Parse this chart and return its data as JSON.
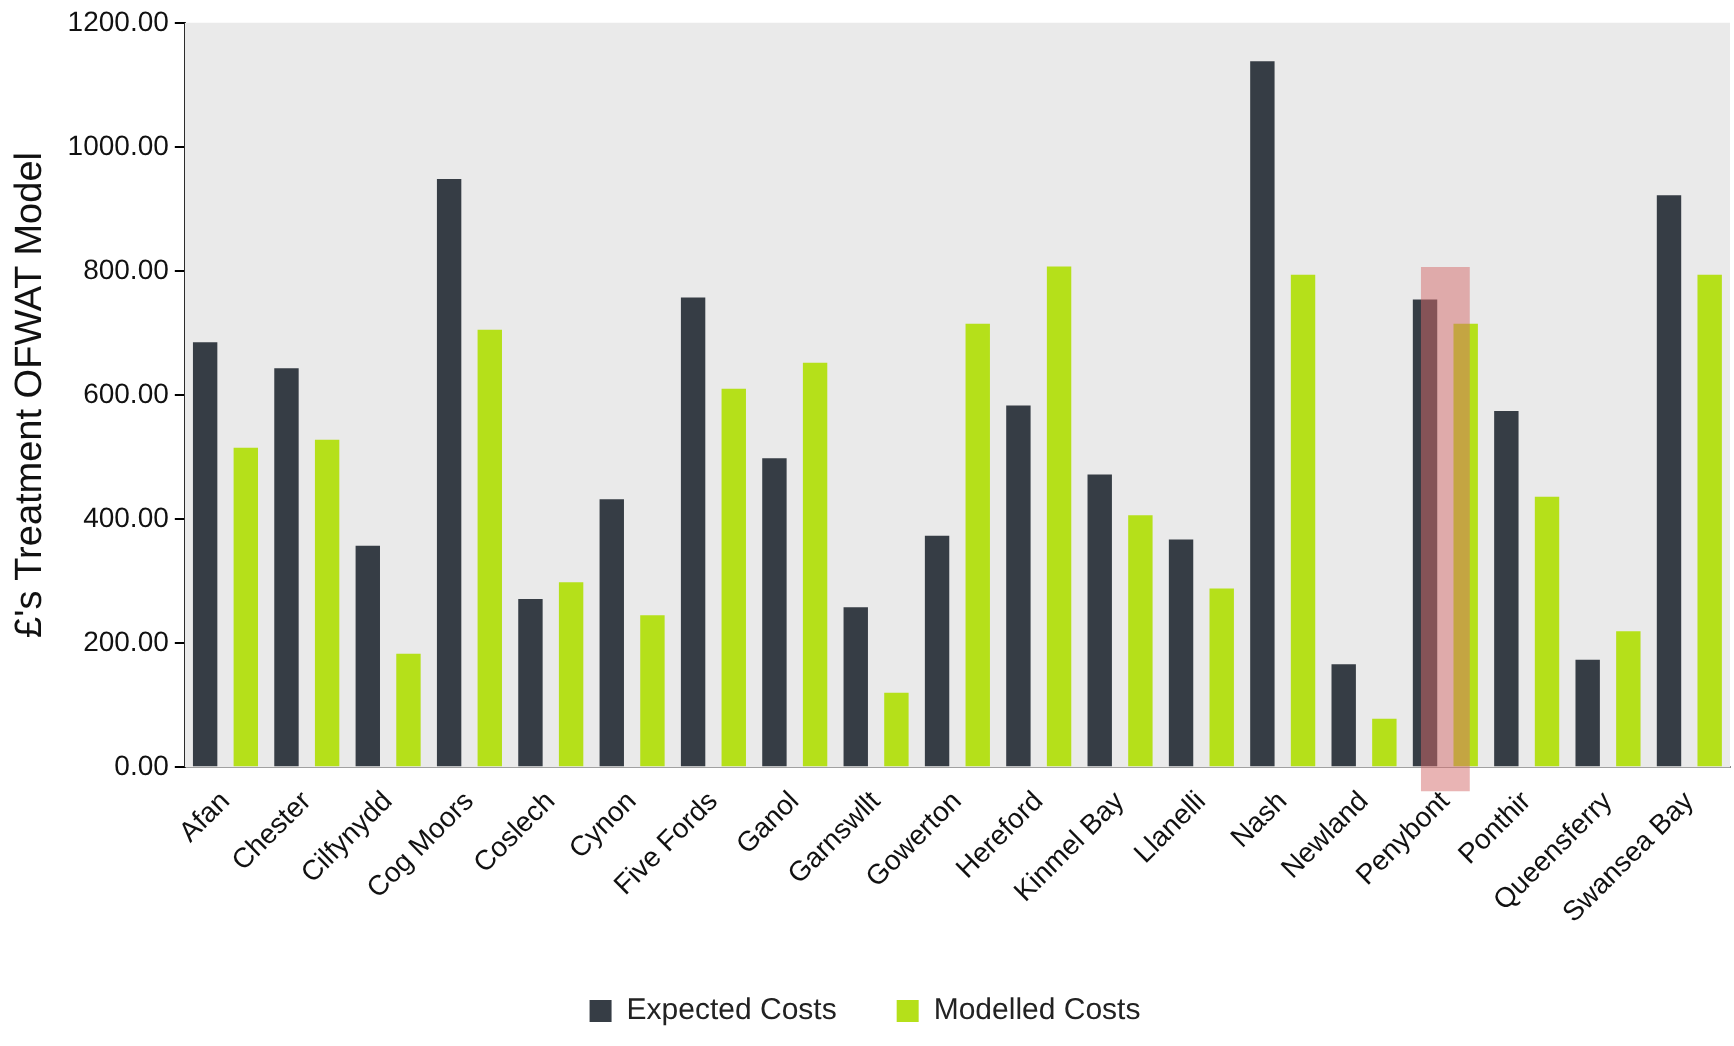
{
  "chart_data": {
    "type": "bar",
    "ylabel": "£'s Treatment OFWAT Model",
    "categories": [
      "Afan",
      "Chester",
      "Cilfynydd",
      "Cog Moors",
      "Coslech",
      "Cynon",
      "Five Fords",
      "Ganol",
      "Garnswllt",
      "Gowerton",
      "Hereford",
      "Kinmel Bay",
      "Llanelli",
      "Nash",
      "Newland",
      "Penybont",
      "Ponthir",
      "Queensferry",
      "Swansea Bay"
    ],
    "series": [
      {
        "name": "Expected Costs",
        "color": "#363d45",
        "values": [
          685,
          643,
          357,
          948,
          271,
          432,
          757,
          498,
          258,
          373,
          583,
          472,
          367,
          1138,
          166,
          754,
          574,
          173,
          922
        ]
      },
      {
        "name": "Modelled Costs",
        "color": "#b5e01a",
        "values": [
          515,
          528,
          183,
          705,
          298,
          245,
          610,
          652,
          120,
          715,
          807,
          406,
          288,
          794,
          78,
          715,
          436,
          219,
          794
        ]
      }
    ],
    "ylim": [
      0,
      1200
    ],
    "yticks": [
      {
        "value": 0,
        "label": "0.00"
      },
      {
        "value": 200,
        "label": "200.00"
      },
      {
        "value": 400,
        "label": "400.00"
      },
      {
        "value": 600,
        "label": "600.00"
      },
      {
        "value": 800,
        "label": "800.00"
      },
      {
        "value": 1000,
        "label": "1000.00"
      },
      {
        "value": 1200,
        "label": "1200.00"
      }
    ],
    "bands": [
      {
        "axis": "x",
        "from": "Penybont",
        "to": "Penybont",
        "color": "#d46a6a"
      }
    ],
    "legend": "bottom",
    "grid": false
  }
}
